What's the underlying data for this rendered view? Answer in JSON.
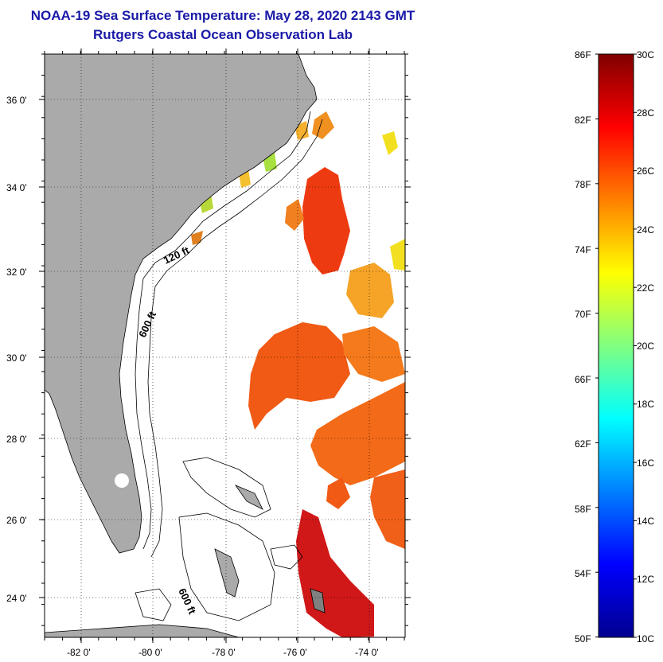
{
  "title": "NOAA-19 Sea Surface Temperature:  May 28, 2020 2143 GMT",
  "subtitle": "Rutgers Coastal Ocean Observation Lab",
  "map": {
    "lon_ticks": [
      "-82 0'",
      "-80 0'",
      "-78 0'",
      "-76 0'",
      "-74 0'"
    ],
    "lat_ticks": [
      "36 0'",
      "34 0'",
      "32 0'",
      "30 0'",
      "28 0'",
      "26 0'",
      "24 0'"
    ],
    "contour_labels": [
      "120 ft",
      "600 ft",
      "600 ft"
    ],
    "land_color": "#aaaaaa",
    "ocean_color": "#ffffff",
    "grid": true
  },
  "colorbar": {
    "fahrenheit_labels": [
      "86F",
      "82F",
      "78F",
      "74F",
      "70F",
      "66F",
      "62F",
      "58F",
      "54F",
      "50F"
    ],
    "celsius_labels": [
      "30C",
      "28C",
      "26C",
      "24C",
      "22C",
      "20C",
      "18C",
      "16C",
      "14C",
      "12C",
      "10C"
    ],
    "min_c": 10,
    "max_c": 30,
    "colormap": "jet"
  }
}
